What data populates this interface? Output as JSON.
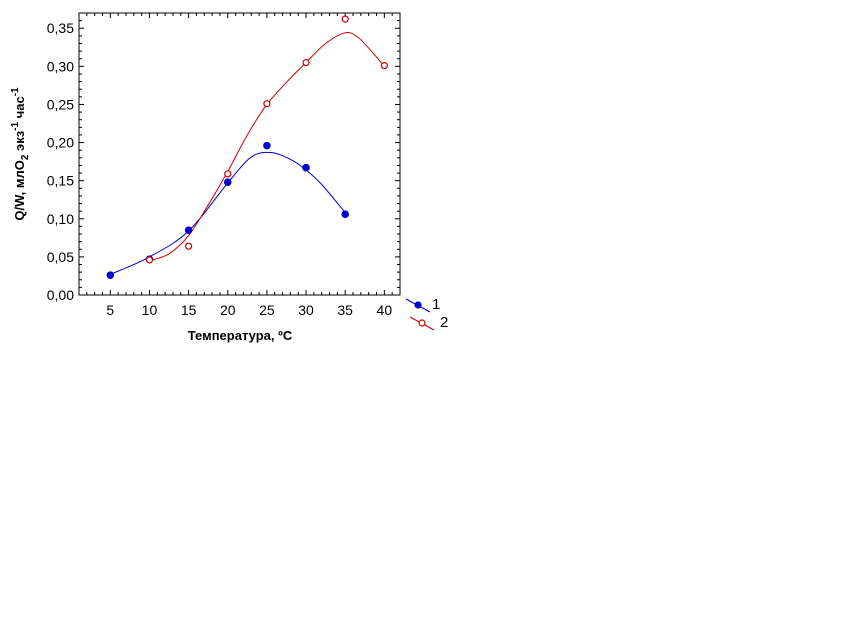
{
  "chart_data": {
    "type": "scatter",
    "xlabel": "Температура, ºC",
    "ylabel": {
      "prefix": "Q/W, млО",
      "sub": "2",
      "middle": " экз",
      "sup1": "-1",
      "suffix": " час",
      "sup2": "-1"
    },
    "xlim": [
      1,
      42
    ],
    "ylim": [
      0,
      0.37
    ],
    "xticks": [
      5,
      10,
      15,
      20,
      25,
      30,
      35,
      40
    ],
    "xtick_labels": [
      "5",
      "10",
      "15",
      "20",
      "25",
      "30",
      "35",
      "40"
    ],
    "yticks": [
      0,
      0.05,
      0.1,
      0.15,
      0.2,
      0.25,
      0.3,
      0.35
    ],
    "ytick_labels": [
      "0,00",
      "0,05",
      "0,10",
      "0,15",
      "0,20",
      "0,25",
      "0,30",
      "0,35"
    ],
    "grid": false,
    "legend_position": "right-bottom outside",
    "series": [
      {
        "name": "1",
        "color": "#0000cc",
        "marker": "filled-circle",
        "x": [
          5,
          10,
          15,
          20,
          25,
          30,
          35
        ],
        "y": [
          0.026,
          0.047,
          0.085,
          0.148,
          0.196,
          0.167,
          0.106
        ],
        "fit": [
          [
            5,
            0.027
          ],
          [
            10,
            0.05
          ],
          [
            15,
            0.084
          ],
          [
            20,
            0.147
          ],
          [
            23,
            0.181
          ],
          [
            25.5,
            0.187
          ],
          [
            28,
            0.178
          ],
          [
            30,
            0.164
          ],
          [
            32,
            0.145
          ],
          [
            35,
            0.108
          ]
        ]
      },
      {
        "name": "2",
        "color": "#cc0000",
        "marker": "open-circle",
        "x": [
          10,
          15,
          20,
          25,
          30,
          35,
          40
        ],
        "y": [
          0.046,
          0.064,
          0.159,
          0.251,
          0.305,
          0.362,
          0.301
        ],
        "fit": [
          [
            10,
            0.045
          ],
          [
            12.5,
            0.054
          ],
          [
            15,
            0.078
          ],
          [
            17.5,
            0.118
          ],
          [
            20,
            0.162
          ],
          [
            22.5,
            0.21
          ],
          [
            25,
            0.25
          ],
          [
            27.5,
            0.279
          ],
          [
            30,
            0.305
          ],
          [
            32.5,
            0.33
          ],
          [
            35,
            0.344
          ],
          [
            36.5,
            0.339
          ],
          [
            38,
            0.324
          ],
          [
            40,
            0.3
          ]
        ]
      }
    ]
  }
}
